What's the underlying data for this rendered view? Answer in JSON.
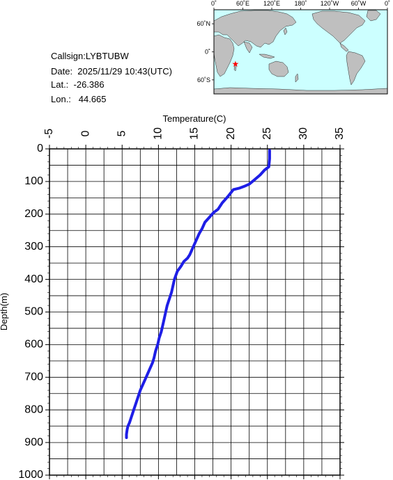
{
  "info": {
    "callsign": "Callsign:LYBTUBW",
    "date": "Date:  2025/11/29 10:43(UTC)",
    "lat": "Lat.:  -26.386",
    "lon": "Lon.:   44.665"
  },
  "map": {
    "top_ticks": [
      "0˚",
      "60˚E",
      "120˚E",
      "180˚",
      "120˚W",
      "60˚W",
      "0˚"
    ],
    "lat_ticks": [
      "60˚N",
      "0˚",
      "60˚S"
    ],
    "marker": {
      "lon": 44.665,
      "lat": -26.386,
      "symbol": "★",
      "color": "#ff0000"
    },
    "ocean_color": "#ccffff",
    "land_color": "#bfbfbf"
  },
  "chart_data": {
    "type": "line",
    "xlabel": "Temperature(C)",
    "ylabel": "Depth(m)",
    "xlim": [
      -5,
      35
    ],
    "ylim": [
      1000,
      0
    ],
    "x_ticks": [
      "-5",
      "0",
      "5",
      "10",
      "15",
      "20",
      "25",
      "30",
      "35"
    ],
    "y_ticks": [
      "0",
      "100",
      "200",
      "300",
      "400",
      "500",
      "600",
      "700",
      "800",
      "900",
      "1000"
    ],
    "line_color": "#1e1ee6",
    "series": [
      {
        "x": [
          25.3,
          25.3,
          25.2,
          24.6,
          24.0,
          23.2,
          22.5,
          21.8,
          21.2,
          20.3,
          19.6,
          18.8,
          18.2,
          17.6,
          17.0,
          16.4,
          16.0,
          15.6,
          15.2,
          14.8,
          14.5,
          14.3,
          14.0,
          13.5,
          13.1,
          12.6,
          12.2,
          12.0,
          11.8,
          11.5,
          11.2,
          11.0,
          10.7,
          10.4,
          10.1,
          9.9,
          9.6,
          9.4,
          9.2,
          9.0,
          8.7,
          8.3,
          7.9,
          7.5,
          7.2,
          6.9,
          6.6,
          6.3,
          6.0,
          5.8,
          5.7,
          5.6,
          5.6
        ],
        "y": [
          5,
          30,
          55,
          65,
          80,
          95,
          108,
          115,
          120,
          125,
          145,
          165,
          185,
          195,
          210,
          225,
          245,
          260,
          280,
          300,
          315,
          325,
          335,
          345,
          360,
          375,
          400,
          420,
          440,
          460,
          480,
          500,
          530,
          560,
          580,
          600,
          620,
          640,
          655,
          665,
          680,
          700,
          720,
          740,
          760,
          780,
          800,
          820,
          840,
          850,
          860,
          875,
          885
        ]
      }
    ]
  }
}
